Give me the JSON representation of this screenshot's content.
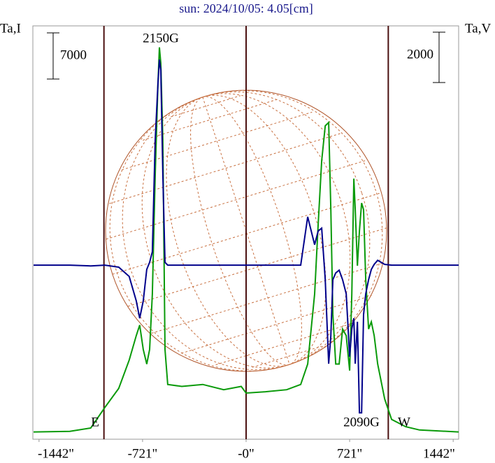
{
  "chart_data": {
    "type": "line",
    "title": "sun: 2024/10/05: 4.05[cm]",
    "y_label": "Ta,I",
    "y2_label": "Ta,V",
    "x": [
      -1480,
      -1228,
      -1082,
      -984,
      -887,
      -814,
      -765,
      -741,
      -716,
      -692,
      -672,
      -653,
      -633,
      -614,
      -604,
      -594,
      -580,
      -565,
      -546,
      -448,
      -302,
      -156,
      -34,
      0,
      136,
      283,
      380,
      429,
      477,
      502,
      526,
      551,
      575,
      590,
      604,
      624,
      648,
      672,
      697,
      721,
      736,
      750,
      760,
      775,
      789,
      804,
      818,
      833,
      853,
      872,
      892,
      916,
      965,
      1013,
      1111,
      1208,
      1480
    ],
    "series": [
      {
        "name": "I",
        "color": "#0a9a0a",
        "values": [
          1100,
          1200,
          1700,
          4800,
          7700,
          12000,
          15700,
          17300,
          13600,
          11400,
          13600,
          22000,
          40100,
          53800,
          59400,
          57000,
          45400,
          13600,
          8300,
          8000,
          8300,
          7500,
          8000,
          7000,
          7200,
          7500,
          8300,
          11400,
          22000,
          32600,
          42200,
          47500,
          48000,
          34800,
          18900,
          11400,
          11400,
          16700,
          15700,
          10400,
          22000,
          39500,
          34800,
          26300,
          31600,
          35800,
          34800,
          24200,
          16700,
          17800,
          15700,
          11400,
          6100,
          3000,
          1900,
          1400,
          1100
        ]
      },
      {
        "name": "V",
        "color": "#00008b",
        "axis": "y2",
        "values": [
          0,
          0,
          -30,
          0,
          -80,
          -450,
          -1420,
          -2110,
          -1420,
          -170,
          110,
          530,
          4980,
          7200,
          8170,
          7760,
          3610,
          110,
          0,
          0,
          0,
          0,
          0,
          0,
          0,
          0,
          0,
          1920,
          810,
          1360,
          1470,
          -580,
          -3920,
          -2810,
          -580,
          -310,
          -200,
          -580,
          -1140,
          -3640,
          -2530,
          -2110,
          -3920,
          -2250,
          -5870,
          -5870,
          -1970,
          -1140,
          -580,
          -170,
          30,
          190,
          30,
          0,
          0,
          0,
          0
        ]
      }
    ],
    "xlim": [
      -1485,
      1480
    ],
    "ylim": [
      0,
      62650
    ],
    "y2lim": [
      -6920,
      9510
    ],
    "xticks": [
      {
        "value": -1442,
        "label": "-1442\""
      },
      {
        "value": -721,
        "label": "-721\""
      },
      {
        "value": 0,
        "label": "-0\""
      },
      {
        "value": 721,
        "label": "721\""
      },
      {
        "value": 1442,
        "label": "1442\""
      }
    ],
    "vlines": [
      -990,
      0,
      990
    ],
    "scale_bars": [
      {
        "axis": "y",
        "value": 7000
      },
      {
        "axis": "y2",
        "value": 2000
      }
    ],
    "annotations": [
      "2150G",
      "2090G",
      "E",
      "W"
    ]
  }
}
